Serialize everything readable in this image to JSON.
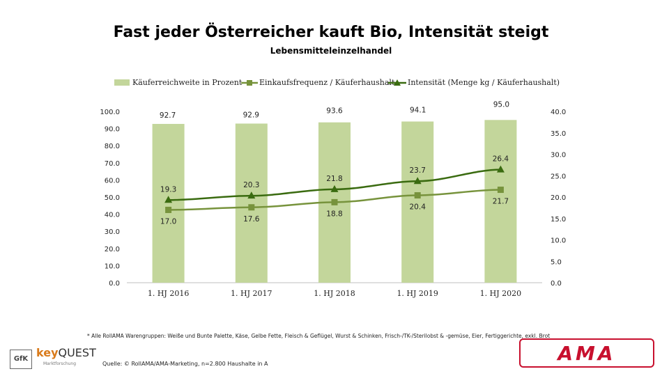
{
  "chart_data": {
    "type": "bar",
    "title": "Fast jeder Österreicher kauft Bio, Intensität steigt",
    "subtitle": "Lebensmitteleinzelhandel",
    "categories": [
      "1. HJ 2016",
      "1. HJ 2017",
      "1. HJ 2018",
      "1. HJ 2019",
      "1. HJ 2020"
    ],
    "left_axis": {
      "ylim": [
        0,
        100
      ],
      "ticks": [
        "0.0",
        "10.0",
        "20.0",
        "30.0",
        "40.0",
        "50.0",
        "60.0",
        "70.0",
        "80.0",
        "90.0",
        "100.0"
      ]
    },
    "right_axis": {
      "ylim": [
        0,
        40
      ],
      "ticks": [
        "0.0",
        "5.0",
        "10.0",
        "15.0",
        "20.0",
        "25.0",
        "30.0",
        "35.0",
        "40.0"
      ]
    },
    "series": [
      {
        "name": "Käuferreichweite in Prozent",
        "type": "bar",
        "axis": "left",
        "color": "#c3d69b",
        "values": [
          92.7,
          92.9,
          93.6,
          94.1,
          95.0
        ],
        "labels": [
          "92.7",
          "92.9",
          "93.6",
          "94.1",
          "95.0"
        ]
      },
      {
        "name": "Einkaufsfrequenz / Käuferhaushalt",
        "type": "line",
        "axis": "right",
        "marker": "square",
        "color": "#77933c",
        "values": [
          17.0,
          17.6,
          18.8,
          20.4,
          21.7
        ],
        "labels": [
          "17.0",
          "17.6",
          "18.8",
          "20.4",
          "21.7"
        ]
      },
      {
        "name": "Intensität (Menge kg / Käuferhaushalt)",
        "type": "line",
        "axis": "right",
        "marker": "triangle",
        "color": "#3a6b10",
        "values": [
          19.3,
          20.3,
          21.8,
          23.7,
          26.4
        ],
        "labels": [
          "19.3",
          "20.3",
          "21.8",
          "23.7",
          "26.4"
        ]
      }
    ],
    "legend": "top",
    "grid": false
  },
  "footnote": "* Alle RollAMA Warengruppen: Weiße und Bunte Palette, Käse, Gelbe Fette, Fleisch & Geflügel, Wurst & Schinken, Frisch-/TK-/Sterilobst & -gemüse, Eier, Fertiggerichte, exkl. Brot",
  "source": "Quelle: © RollAMA/AMA-Marketing, n=2.800 Haushalte in A",
  "logos": {
    "gfk": "GfK",
    "keyquest_key": "key",
    "keyquest_quest": "QUEST",
    "keyquest_sub": "Marktforschung",
    "ama": "AMA"
  }
}
